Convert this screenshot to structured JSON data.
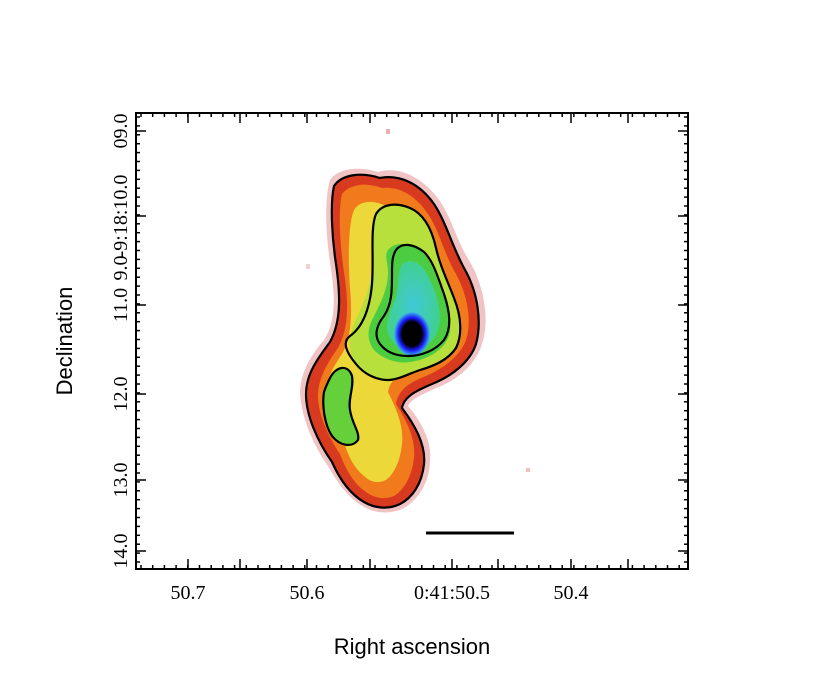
{
  "figure": {
    "xlabel": "Right ascension",
    "ylabel": "Declination",
    "x_tick_labels": [
      "50.7",
      "50.6",
      "0:41:50.5",
      "50.4"
    ],
    "y_tick_labels": [
      "09.0",
      "-9:18:10.0",
      "9.0",
      "11.0",
      "12.0",
      "13.0",
      "14.0"
    ],
    "colormap": [
      "#000000",
      "#1a1aff",
      "#40c0e0",
      "#3ccf3c",
      "#a8e23a",
      "#e6e63a",
      "#ffb020",
      "#f26a1a",
      "#d42a1a",
      "#e0a0a0"
    ],
    "contour_color": "#000000",
    "scalebar_color": "#000000"
  }
}
